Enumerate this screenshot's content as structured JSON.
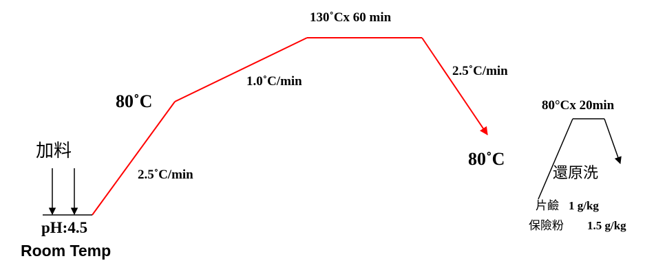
{
  "colors": {
    "red": "#ff0000",
    "black": "#000000"
  },
  "labels": {
    "hold_top": "130˚Cx 60 min",
    "rate_up2": "1.0˚C/min",
    "rate_down": "2.5˚C/min",
    "temp_80_left": "80˚C",
    "temp_80_right": "80˚C",
    "rate_up1": "2.5˚C/min",
    "add_material": "加料",
    "ph": "pH:4.5",
    "room_temp": "Room Temp",
    "reduction_hold": "80°Cx 20min",
    "reduction_clear": "還原洗",
    "chem1_name": "片鹼",
    "chem1_amount": "1 g/kg",
    "chem2_name": "保險粉",
    "chem2_amount": "1.5 g/kg"
  }
}
